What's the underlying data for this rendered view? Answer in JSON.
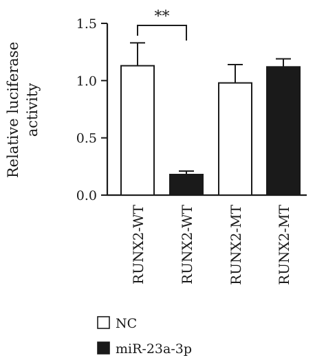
{
  "chart_data": {
    "type": "bar",
    "ylabel_lines": [
      "Relative luciferase",
      "activity"
    ],
    "ylim": [
      0,
      1.5
    ],
    "yticks": [
      "0.0",
      "0.5",
      "1.0",
      "1.5"
    ],
    "categories": [
      "RUNX2-WT",
      "RUNX2-WT",
      "RUNX2-MT",
      "RUNX2-MT"
    ],
    "bars": [
      {
        "category": "RUNX2-WT",
        "series": "NC",
        "value": 1.13,
        "error": 0.2
      },
      {
        "category": "RUNX2-WT",
        "series": "miR-23a-3p",
        "value": 0.18,
        "error": 0.03
      },
      {
        "category": "RUNX2-MT",
        "series": "NC",
        "value": 0.98,
        "error": 0.16
      },
      {
        "category": "RUNX2-MT",
        "series": "miR-23a-3p",
        "value": 1.12,
        "error": 0.07
      }
    ],
    "legend": [
      {
        "name": "NC",
        "fill": "#ffffff"
      },
      {
        "name": "miR-23a-3p",
        "fill": "#1a1a1a"
      }
    ],
    "significance": {
      "label": "**",
      "between": [
        0,
        1
      ]
    },
    "grid": false,
    "legend_position": "bottom-left"
  }
}
